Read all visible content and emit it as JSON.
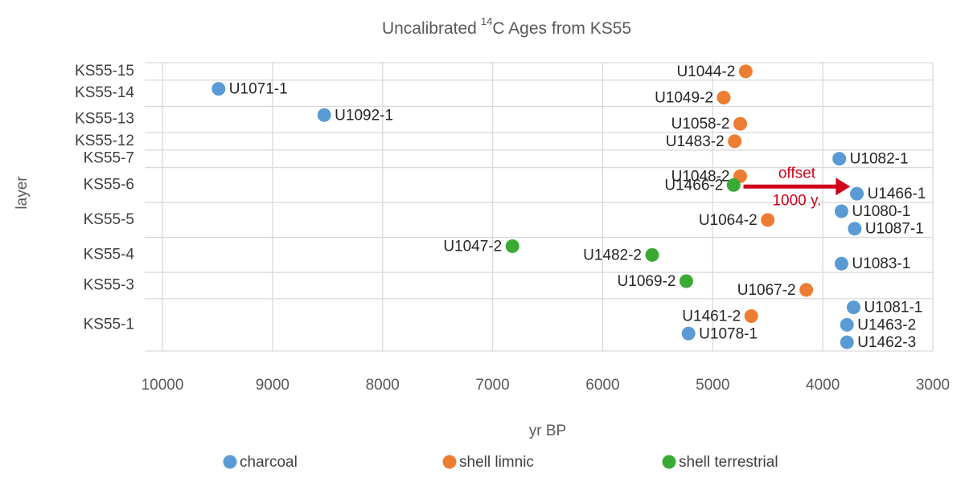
{
  "chart_data": {
    "type": "scatter",
    "title": {
      "prefix": "Uncalibrated",
      "superscript": "14",
      "suffix": "C Ages from KS55"
    },
    "x_label": "yr BP",
    "y_label": "layer",
    "xlim": [
      10000,
      3000
    ],
    "xticks": [
      10000,
      9000,
      8000,
      7000,
      6000,
      5000,
      4000,
      3000
    ],
    "grid": true,
    "legend_position": "bottom",
    "categories": [
      "KS55-15",
      "KS55-14",
      "KS55-13",
      "KS55-12",
      "KS55-7",
      "KS55-6",
      "KS55-5",
      "KS55-4",
      "KS55-3",
      "KS55-1"
    ],
    "series": [
      {
        "name": "charcoal",
        "color": "#5b9bd5"
      },
      {
        "name": "shell limnic",
        "color": "#ed7d31"
      },
      {
        "name": "shell terrestrial",
        "color": "#3aaa35"
      }
    ],
    "points": [
      {
        "label": "U1044-2",
        "x": 4700,
        "layer": "KS55-15",
        "series": "shell limnic"
      },
      {
        "label": "U1071-1",
        "x": 9490,
        "layer": "KS55-14",
        "series": "charcoal"
      },
      {
        "label": "U1049-2",
        "x": 4900,
        "layer": "KS55-14",
        "series": "shell limnic"
      },
      {
        "label": "U1092-1",
        "x": 8530,
        "layer": "KS55-13",
        "series": "charcoal"
      },
      {
        "label": "U1058-2",
        "x": 4750,
        "layer": "KS55-13",
        "series": "shell limnic"
      },
      {
        "label": "U1483-2",
        "x": 4800,
        "layer": "KS55-12",
        "series": "shell limnic"
      },
      {
        "label": "U1082-1",
        "x": 3850,
        "layer": "KS55-7",
        "series": "charcoal"
      },
      {
        "label": "U1048-2",
        "x": 4750,
        "layer": "KS55-6",
        "series": "shell limnic"
      },
      {
        "label": "U1466-2",
        "x": 4810,
        "layer": "KS55-6",
        "series": "shell terrestrial"
      },
      {
        "label": "U1466-1",
        "x": 3690,
        "layer": "KS55-6",
        "series": "charcoal"
      },
      {
        "label": "U1080-1",
        "x": 3830,
        "layer": "KS55-5",
        "series": "charcoal"
      },
      {
        "label": "U1064-2",
        "x": 4500,
        "layer": "KS55-5",
        "series": "shell limnic"
      },
      {
        "label": "U1087-1",
        "x": 3710,
        "layer": "KS55-5",
        "series": "charcoal"
      },
      {
        "label": "U1047-2",
        "x": 6820,
        "layer": "KS55-4",
        "series": "shell terrestrial"
      },
      {
        "label": "U1482-2",
        "x": 5550,
        "layer": "KS55-4",
        "series": "shell terrestrial"
      },
      {
        "label": "U1083-1",
        "x": 3830,
        "layer": "KS55-4",
        "series": "charcoal"
      },
      {
        "label": "U1069-2",
        "x": 5240,
        "layer": "KS55-3",
        "series": "shell terrestrial"
      },
      {
        "label": "U1067-2",
        "x": 4150,
        "layer": "KS55-3",
        "series": "shell limnic"
      },
      {
        "label": "U1081-1",
        "x": 3720,
        "layer": "KS55-1",
        "series": "charcoal"
      },
      {
        "label": "U1461-2",
        "x": 4650,
        "layer": "KS55-1",
        "series": "shell limnic"
      },
      {
        "label": "U1463-2",
        "x": 3780,
        "layer": "KS55-1",
        "series": "charcoal"
      },
      {
        "label": "U1078-1",
        "x": 5220,
        "layer": "KS55-1",
        "series": "charcoal"
      },
      {
        "label": "U1462-3",
        "x": 3780,
        "layer": "KS55-1",
        "series": "charcoal"
      }
    ],
    "annotation": {
      "lines": [
        "offset",
        "1000 y."
      ],
      "x_from": 4750,
      "x_to": 3750,
      "layer": "KS55-6",
      "color": "#d0021b"
    }
  }
}
